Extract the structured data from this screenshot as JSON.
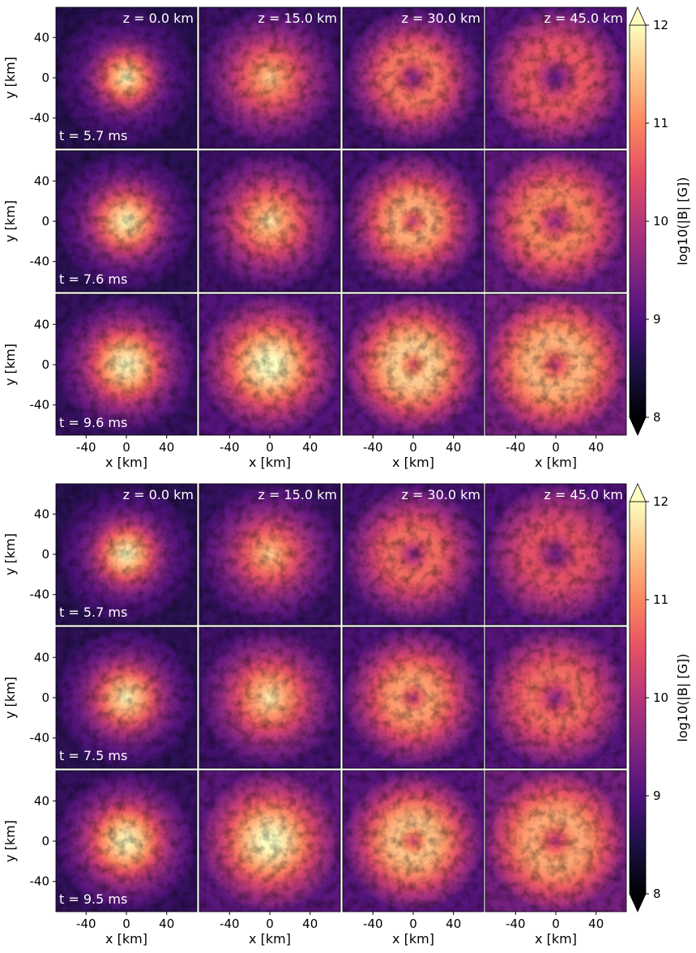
{
  "chart_data": {
    "type": "heatmap",
    "colormap": "magma",
    "colorbar": {
      "label": "log10(|B| [G])",
      "range": [
        8,
        12
      ],
      "ticks": [
        8,
        9,
        10,
        11,
        12
      ],
      "extend": "both"
    },
    "xlabel": "x [km]",
    "ylabel": "y [km]",
    "xlim": [
      -70,
      70
    ],
    "ylim": [
      -70,
      70
    ],
    "xticks": [
      -40,
      0,
      40
    ],
    "yticks": [
      -40,
      0,
      40
    ],
    "columns_z_km": [
      "0.0",
      "15.0",
      "30.0",
      "45.0"
    ],
    "groups": [
      {
        "times_ms": [
          "5.7",
          "7.6",
          "9.6"
        ],
        "levels": [
          [
            {
              "peak": 11.7,
              "rin": 0,
              "core": 7,
              "spread": 30,
              "hole": 0
            },
            {
              "peak": 11.2,
              "rin": 0,
              "core": 10,
              "spread": 45,
              "hole": 0
            },
            {
              "peak": 10.9,
              "rin": 20,
              "core": 0,
              "spread": 40,
              "hole": 1
            },
            {
              "peak": 10.6,
              "rin": 25,
              "core": 0,
              "spread": 45,
              "hole": 1
            }
          ],
          [
            {
              "peak": 11.8,
              "rin": 0,
              "core": 7,
              "spread": 35,
              "hole": 0
            },
            {
              "peak": 11.4,
              "rin": 12,
              "core": 10,
              "spread": 45,
              "hole": 0
            },
            {
              "peak": 11.3,
              "rin": 15,
              "core": 0,
              "spread": 45,
              "hole": 1
            },
            {
              "peak": 11.0,
              "rin": 22,
              "core": 0,
              "spread": 50,
              "hole": 1
            }
          ],
          [
            {
              "peak": 11.9,
              "rin": 0,
              "core": 7,
              "spread": 40,
              "hole": 0
            },
            {
              "peak": 12.0,
              "rin": 0,
              "core": 12,
              "spread": 50,
              "hole": 0
            },
            {
              "peak": 11.6,
              "rin": 15,
              "core": 0,
              "spread": 50,
              "hole": 1
            },
            {
              "peak": 11.4,
              "rin": 20,
              "core": 0,
              "spread": 55,
              "hole": 1
            }
          ]
        ]
      },
      {
        "times_ms": [
          "5.7",
          "7.5",
          "9.5"
        ],
        "levels": [
          [
            {
              "peak": 11.8,
              "rin": 0,
              "core": 7,
              "spread": 32,
              "hole": 0
            },
            {
              "peak": 11.2,
              "rin": 12,
              "core": 10,
              "spread": 42,
              "hole": 0
            },
            {
              "peak": 10.8,
              "rin": 18,
              "core": 0,
              "spread": 45,
              "hole": 1
            },
            {
              "peak": 10.5,
              "rin": 22,
              "core": 0,
              "spread": 48,
              "hole": 1
            }
          ],
          [
            {
              "peak": 11.7,
              "rin": 0,
              "core": 7,
              "spread": 36,
              "hole": 0
            },
            {
              "peak": 11.5,
              "rin": 12,
              "core": 10,
              "spread": 45,
              "hole": 0
            },
            {
              "peak": 11.2,
              "rin": 15,
              "core": 0,
              "spread": 48,
              "hole": 1
            },
            {
              "peak": 10.8,
              "rin": 20,
              "core": 0,
              "spread": 50,
              "hole": 1
            }
          ],
          [
            {
              "peak": 11.9,
              "rin": 0,
              "core": 7,
              "spread": 40,
              "hole": 0
            },
            {
              "peak": 12.0,
              "rin": 0,
              "core": 12,
              "spread": 52,
              "hole": 0
            },
            {
              "peak": 11.5,
              "rin": 15,
              "core": 0,
              "spread": 50,
              "hole": 1
            },
            {
              "peak": 11.3,
              "rin": 20,
              "core": 0,
              "spread": 55,
              "hole": 1
            }
          ]
        ]
      }
    ]
  }
}
